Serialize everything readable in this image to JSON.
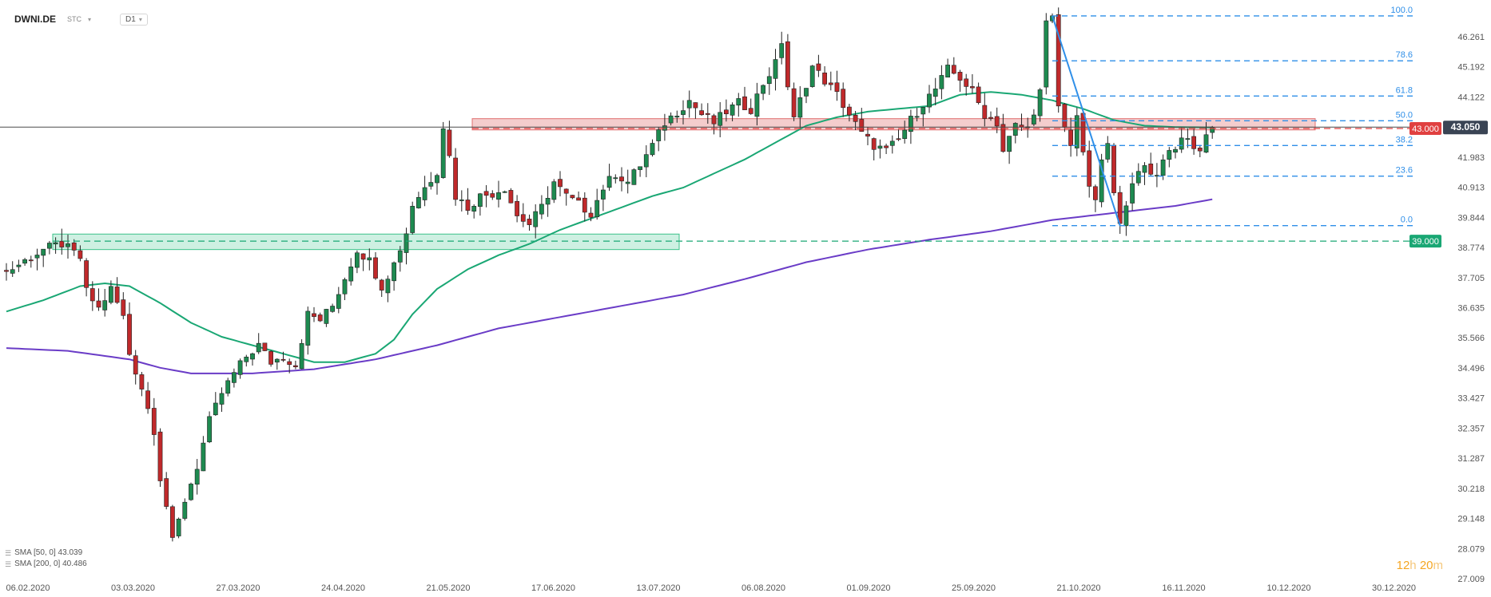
{
  "header": {
    "symbol": "DWNI.DE",
    "source": "STC",
    "timeframe": "D1"
  },
  "legend": [
    {
      "label": "SMA [50, 0] 43.039",
      "color": "#1aa774"
    },
    {
      "label": "SMA [200, 0] 40.486",
      "color": "#6a3cc7"
    }
  ],
  "timer": {
    "hours": "12",
    "hours_unit": "h",
    "minutes": "20",
    "minutes_unit": "m"
  },
  "colors": {
    "up": "#1e8a50",
    "down": "#c0292b",
    "sma50": "#1aa774",
    "sma200": "#6a3cc7",
    "fib": "#2f8fe8",
    "resistance_zone": "#e07070",
    "support_zone": "#3cc28a",
    "price_label": "#3a4454",
    "resistance_label": "#e04040",
    "support_label": "#1aa774"
  },
  "chart_data": {
    "type": "candlestick",
    "y_ticks": [
      "46.261",
      "45.192",
      "44.122",
      "43.053",
      "41.983",
      "40.913",
      "39.844",
      "38.774",
      "37.705",
      "36.635",
      "35.566",
      "34.496",
      "33.427",
      "32.357",
      "31.287",
      "30.218",
      "29.148",
      "28.079",
      "27.009"
    ],
    "ylim": [
      27.009,
      46.261
    ],
    "x_ticks": [
      "06.02.2020",
      "03.03.2020",
      "27.03.2020",
      "24.04.2020",
      "21.05.2020",
      "17.06.2020",
      "13.07.2020",
      "06.08.2020",
      "01.09.2020",
      "25.09.2020",
      "21.10.2020",
      "16.11.2020",
      "10.12.2020",
      "30.12.2020"
    ],
    "current_price": {
      "value": 43.05,
      "label": "43.050"
    },
    "levels": [
      {
        "value": 43.0,
        "label": "43.000",
        "kind": "resistance"
      },
      {
        "value": 39.0,
        "label": "39.000",
        "kind": "support"
      }
    ],
    "fibonacci": {
      "high": 47.0,
      "low": 39.55,
      "levels": [
        {
          "ratio": 100.0,
          "label": "100.0"
        },
        {
          "ratio": 78.6,
          "label": "78.6"
        },
        {
          "ratio": 61.8,
          "label": "61.8"
        },
        {
          "ratio": 50.0,
          "label": "50.0"
        },
        {
          "ratio": 38.2,
          "label": "38.2"
        },
        {
          "ratio": 23.6,
          "label": "23.6"
        },
        {
          "ratio": 0.0,
          "label": "0.0"
        }
      ]
    },
    "zones": [
      {
        "from": "21.05.2020",
        "to": "10.12.2020",
        "low": 42.95,
        "high": 43.35,
        "kind": "resistance"
      },
      {
        "from": "10.02.2020",
        "to": "09.07.2020",
        "low": 38.7,
        "high": 39.25,
        "kind": "support"
      }
    ],
    "price_anchors": [
      [
        0,
        37.9
      ],
      [
        3,
        38.3
      ],
      [
        6,
        38.7
      ],
      [
        9,
        38.9
      ],
      [
        12,
        38.4
      ],
      [
        13,
        37.2
      ],
      [
        15,
        36.6
      ],
      [
        17,
        37.3
      ],
      [
        19,
        36.3
      ],
      [
        20,
        35.0
      ],
      [
        22,
        33.8
      ],
      [
        24,
        32.3
      ],
      [
        25,
        30.6
      ],
      [
        26,
        29.6
      ],
      [
        27,
        28.3
      ],
      [
        29,
        29.8
      ],
      [
        31,
        31.0
      ],
      [
        33,
        32.6
      ],
      [
        35,
        33.6
      ],
      [
        37,
        34.3
      ],
      [
        39,
        34.9
      ],
      [
        41,
        35.3
      ],
      [
        43,
        34.7
      ],
      [
        45,
        34.9
      ],
      [
        47,
        34.6
      ],
      [
        49,
        36.4
      ],
      [
        51,
        36.2
      ],
      [
        53,
        36.7
      ],
      [
        55,
        37.7
      ],
      [
        57,
        38.7
      ],
      [
        59,
        38.3
      ],
      [
        61,
        37.4
      ],
      [
        63,
        38.2
      ],
      [
        65,
        39.3
      ],
      [
        66,
        40.3
      ],
      [
        68,
        40.9
      ],
      [
        70,
        41.5
      ],
      [
        71,
        43.1
      ],
      [
        72,
        42.0
      ],
      [
        73,
        40.6
      ],
      [
        75,
        40.2
      ],
      [
        77,
        40.6
      ],
      [
        79,
        40.7
      ],
      [
        81,
        40.9
      ],
      [
        83,
        39.9
      ],
      [
        85,
        39.6
      ],
      [
        87,
        40.2
      ],
      [
        89,
        41.1
      ],
      [
        91,
        40.6
      ],
      [
        93,
        40.3
      ],
      [
        95,
        40.0
      ],
      [
        97,
        40.9
      ],
      [
        99,
        41.4
      ],
      [
        101,
        41.1
      ],
      [
        103,
        41.7
      ],
      [
        105,
        42.4
      ],
      [
        107,
        43.2
      ],
      [
        109,
        43.6
      ],
      [
        111,
        44.0
      ],
      [
        113,
        43.5
      ],
      [
        115,
        43.2
      ],
      [
        117,
        43.6
      ],
      [
        119,
        43.9
      ],
      [
        121,
        43.7
      ],
      [
        123,
        44.6
      ],
      [
        125,
        45.3
      ],
      [
        126,
        46.1
      ],
      [
        127,
        44.5
      ],
      [
        128,
        43.3
      ],
      [
        129,
        44.0
      ],
      [
        131,
        45.2
      ],
      [
        133,
        44.7
      ],
      [
        135,
        44.2
      ],
      [
        137,
        43.5
      ],
      [
        139,
        42.8
      ],
      [
        141,
        42.4
      ],
      [
        143,
        42.2
      ],
      [
        145,
        42.6
      ],
      [
        147,
        43.3
      ],
      [
        149,
        43.9
      ],
      [
        151,
        44.4
      ],
      [
        153,
        45.1
      ],
      [
        155,
        44.8
      ],
      [
        157,
        44.3
      ],
      [
        159,
        43.5
      ],
      [
        161,
        43.2
      ],
      [
        162,
        42.2
      ],
      [
        164,
        43.1
      ],
      [
        166,
        43.0
      ],
      [
        168,
        44.3
      ],
      [
        169,
        46.7
      ],
      [
        170,
        46.9
      ],
      [
        171,
        43.8
      ],
      [
        172,
        43.0
      ],
      [
        173,
        42.5
      ],
      [
        174,
        43.5
      ],
      [
        175,
        42.0
      ],
      [
        176,
        41.0
      ],
      [
        177,
        40.3
      ],
      [
        178,
        41.9
      ],
      [
        179,
        42.4
      ],
      [
        180,
        40.6
      ],
      [
        181,
        39.8
      ],
      [
        182,
        40.4
      ],
      [
        184,
        41.4
      ],
      [
        185,
        41.7
      ],
      [
        187,
        41.3
      ],
      [
        188,
        42.0
      ],
      [
        190,
        42.4
      ],
      [
        192,
        42.6
      ],
      [
        194,
        42.1
      ],
      [
        195,
        42.9
      ],
      [
        196,
        43.05
      ]
    ],
    "sma50_anchors": [
      [
        0,
        36.5
      ],
      [
        6,
        36.9
      ],
      [
        12,
        37.4
      ],
      [
        16,
        37.5
      ],
      [
        20,
        37.4
      ],
      [
        25,
        36.8
      ],
      [
        30,
        36.1
      ],
      [
        35,
        35.6
      ],
      [
        40,
        35.3
      ],
      [
        45,
        35.0
      ],
      [
        50,
        34.7
      ],
      [
        55,
        34.7
      ],
      [
        60,
        35.0
      ],
      [
        63,
        35.5
      ],
      [
        66,
        36.4
      ],
      [
        70,
        37.3
      ],
      [
        75,
        38.0
      ],
      [
        80,
        38.5
      ],
      [
        85,
        38.9
      ],
      [
        90,
        39.4
      ],
      [
        95,
        39.8
      ],
      [
        100,
        40.2
      ],
      [
        105,
        40.6
      ],
      [
        110,
        40.9
      ],
      [
        115,
        41.4
      ],
      [
        120,
        41.9
      ],
      [
        125,
        42.5
      ],
      [
        130,
        43.1
      ],
      [
        135,
        43.4
      ],
      [
        140,
        43.6
      ],
      [
        145,
        43.7
      ],
      [
        150,
        43.8
      ],
      [
        155,
        44.2
      ],
      [
        160,
        44.3
      ],
      [
        165,
        44.2
      ],
      [
        170,
        44.0
      ],
      [
        175,
        43.7
      ],
      [
        180,
        43.3
      ],
      [
        185,
        43.1
      ],
      [
        190,
        43.05
      ],
      [
        196,
        43.039
      ]
    ],
    "sma200_anchors": [
      [
        0,
        35.2
      ],
      [
        10,
        35.1
      ],
      [
        20,
        34.8
      ],
      [
        25,
        34.5
      ],
      [
        30,
        34.3
      ],
      [
        40,
        34.3
      ],
      [
        50,
        34.45
      ],
      [
        60,
        34.8
      ],
      [
        70,
        35.3
      ],
      [
        80,
        35.9
      ],
      [
        90,
        36.3
      ],
      [
        100,
        36.7
      ],
      [
        110,
        37.1
      ],
      [
        120,
        37.65
      ],
      [
        130,
        38.25
      ],
      [
        140,
        38.7
      ],
      [
        150,
        39.05
      ],
      [
        160,
        39.35
      ],
      [
        170,
        39.75
      ],
      [
        180,
        40.0
      ],
      [
        190,
        40.25
      ],
      [
        196,
        40.486
      ]
    ]
  }
}
